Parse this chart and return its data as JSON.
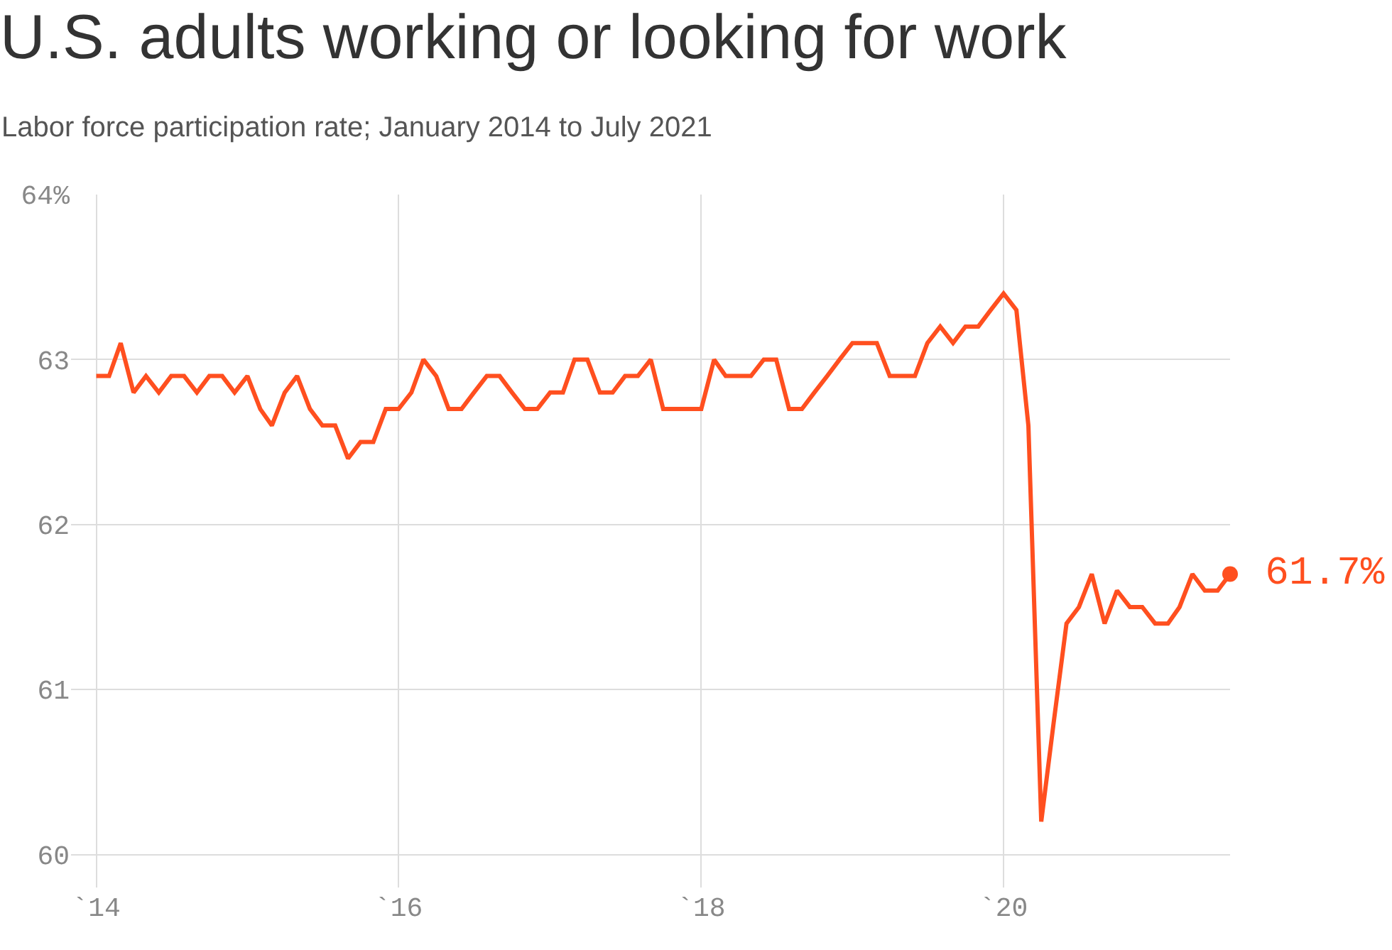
{
  "chart_data": {
    "type": "line",
    "title": "U.S. adults working or looking for work",
    "subtitle": "Labor force participation rate; January 2014 to July 2021",
    "x": [
      "2014-01",
      "2014-02",
      "2014-03",
      "2014-04",
      "2014-05",
      "2014-06",
      "2014-07",
      "2014-08",
      "2014-09",
      "2014-10",
      "2014-11",
      "2014-12",
      "2015-01",
      "2015-02",
      "2015-03",
      "2015-04",
      "2015-05",
      "2015-06",
      "2015-07",
      "2015-08",
      "2015-09",
      "2015-10",
      "2015-11",
      "2015-12",
      "2016-01",
      "2016-02",
      "2016-03",
      "2016-04",
      "2016-05",
      "2016-06",
      "2016-07",
      "2016-08",
      "2016-09",
      "2016-10",
      "2016-11",
      "2016-12",
      "2017-01",
      "2017-02",
      "2017-03",
      "2017-04",
      "2017-05",
      "2017-06",
      "2017-07",
      "2017-08",
      "2017-09",
      "2017-10",
      "2017-11",
      "2017-12",
      "2018-01",
      "2018-02",
      "2018-03",
      "2018-04",
      "2018-05",
      "2018-06",
      "2018-07",
      "2018-08",
      "2018-09",
      "2018-10",
      "2018-11",
      "2018-12",
      "2019-01",
      "2019-02",
      "2019-03",
      "2019-04",
      "2019-05",
      "2019-06",
      "2019-07",
      "2019-08",
      "2019-09",
      "2019-10",
      "2019-11",
      "2019-12",
      "2020-01",
      "2020-02",
      "2020-03",
      "2020-04",
      "2020-05",
      "2020-06",
      "2020-07",
      "2020-08",
      "2020-09",
      "2020-10",
      "2020-11",
      "2020-12",
      "2021-01",
      "2021-02",
      "2021-03",
      "2021-04",
      "2021-05",
      "2021-06",
      "2021-07"
    ],
    "series": [
      {
        "color": "#ff4f1f",
        "values": [
          62.9,
          62.9,
          63.1,
          62.8,
          62.9,
          62.8,
          62.9,
          62.9,
          62.8,
          62.9,
          62.9,
          62.8,
          62.9,
          62.7,
          62.6,
          62.8,
          62.9,
          62.7,
          62.6,
          62.6,
          62.4,
          62.5,
          62.5,
          62.7,
          62.7,
          62.8,
          63.0,
          62.9,
          62.7,
          62.7,
          62.8,
          62.9,
          62.9,
          62.8,
          62.7,
          62.7,
          62.8,
          62.8,
          63.0,
          63.0,
          62.8,
          62.8,
          62.9,
          62.9,
          63.0,
          62.7,
          62.7,
          62.7,
          62.7,
          63.0,
          62.9,
          62.9,
          62.9,
          63.0,
          63.0,
          62.7,
          62.7,
          62.8,
          62.9,
          63.0,
          63.1,
          63.1,
          63.1,
          62.9,
          62.9,
          62.9,
          63.1,
          63.2,
          63.1,
          63.2,
          63.2,
          63.3,
          63.4,
          63.3,
          62.6,
          60.2,
          60.8,
          61.4,
          61.5,
          61.7,
          61.4,
          61.6,
          61.5,
          61.5,
          61.4,
          61.4,
          61.5,
          61.7,
          61.6,
          61.6,
          61.7
        ]
      }
    ],
    "xlim": [
      "2013-11-01",
      "2021-07-01"
    ],
    "xticks": [
      {
        "value": "2014",
        "label": "`14"
      },
      {
        "value": "2016",
        "label": "`16"
      },
      {
        "value": "2018",
        "label": "`18"
      },
      {
        "value": "2020",
        "label": "`20"
      }
    ],
    "ylim": [
      59.8,
      64
    ],
    "yticks": [
      60,
      61,
      62,
      63,
      {
        "value": 64,
        "label": "64%"
      }
    ],
    "grid": true,
    "marker": "none",
    "line_style": "solid",
    "annotations": [
      {
        "text": "61.7%",
        "x": "2021-07",
        "y": 61.7
      }
    ]
  }
}
